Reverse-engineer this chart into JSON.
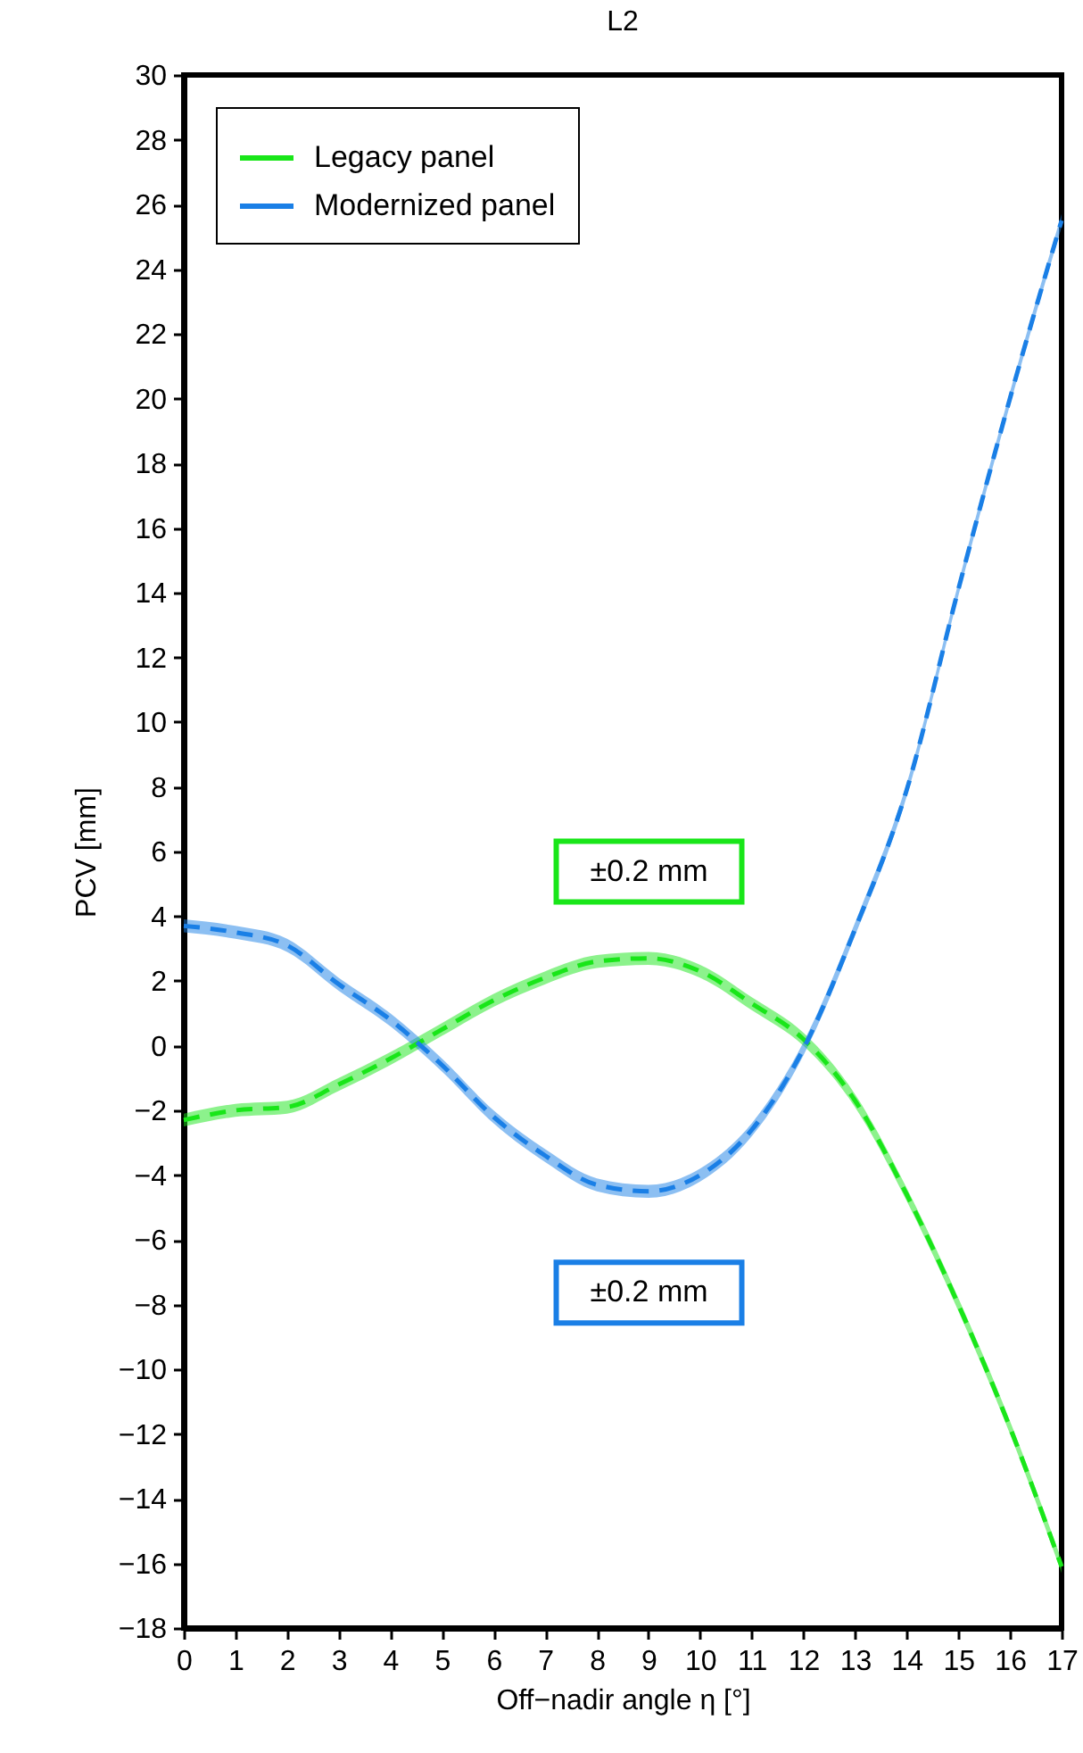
{
  "chart_data": {
    "type": "line",
    "title": "L2",
    "xlabel": "Off−nadir angle η [°]",
    "ylabel": "PCV [mm]",
    "x": [
      0,
      1,
      2,
      3,
      4,
      5,
      6,
      7,
      8,
      9,
      10,
      11,
      12,
      13,
      14,
      15,
      16,
      17
    ],
    "series": [
      {
        "name": "Legacy panel",
        "color": "#19e619",
        "values": [
          -2.3,
          -2.0,
          -1.9,
          -1.2,
          -0.4,
          0.5,
          1.4,
          2.1,
          2.6,
          2.7,
          2.3,
          1.3,
          0.2,
          -1.7,
          -4.6,
          -8.0,
          -11.8,
          -16.1
        ],
        "lower": [
          -2.5,
          -2.2,
          -2.1,
          -1.4,
          -0.6,
          0.3,
          1.2,
          1.9,
          2.4,
          2.5,
          2.1,
          1.1,
          0.0,
          -1.9,
          -4.8,
          -8.2,
          -12.0,
          -16.3
        ],
        "upper": [
          -2.1,
          -1.8,
          -1.7,
          -1.0,
          -0.2,
          0.7,
          1.6,
          2.3,
          2.8,
          2.9,
          2.5,
          1.5,
          0.4,
          -1.5,
          -4.4,
          -7.8,
          -11.6,
          -15.9
        ]
      },
      {
        "name": "Modernized panel",
        "color": "#1a7fe6",
        "values": [
          3.7,
          3.5,
          3.1,
          1.9,
          0.8,
          -0.6,
          -2.2,
          -3.4,
          -4.3,
          -4.5,
          -4.0,
          -2.6,
          -0.1,
          3.6,
          7.9,
          14.1,
          20.0,
          25.5
        ],
        "lower": [
          3.5,
          3.3,
          2.9,
          1.7,
          0.6,
          -0.8,
          -2.4,
          -3.6,
          -4.5,
          -4.7,
          -4.2,
          -2.8,
          -0.3,
          3.4,
          7.7,
          13.9,
          19.8,
          25.3
        ],
        "upper": [
          3.9,
          3.7,
          3.3,
          2.1,
          1.0,
          -0.4,
          -2.0,
          -3.2,
          -4.1,
          -4.3,
          -3.8,
          -2.4,
          0.1,
          3.8,
          8.1,
          14.3,
          20.2,
          25.7
        ]
      }
    ],
    "line_style": "dashed",
    "xlim": [
      0,
      17
    ],
    "xticks": [
      0,
      1,
      2,
      3,
      4,
      5,
      6,
      7,
      8,
      9,
      10,
      11,
      12,
      13,
      14,
      15,
      16,
      17
    ],
    "ylim": [
      -18,
      30
    ],
    "yticks": [
      -18,
      -16,
      -14,
      -12,
      -10,
      -8,
      -6,
      -4,
      -2,
      0,
      2,
      4,
      6,
      8,
      10,
      12,
      14,
      16,
      18,
      20,
      22,
      24,
      26,
      28,
      30
    ],
    "grid": false,
    "legend": "top left",
    "annotations": [
      "±0.2 mm",
      "±0.2 mm"
    ]
  }
}
